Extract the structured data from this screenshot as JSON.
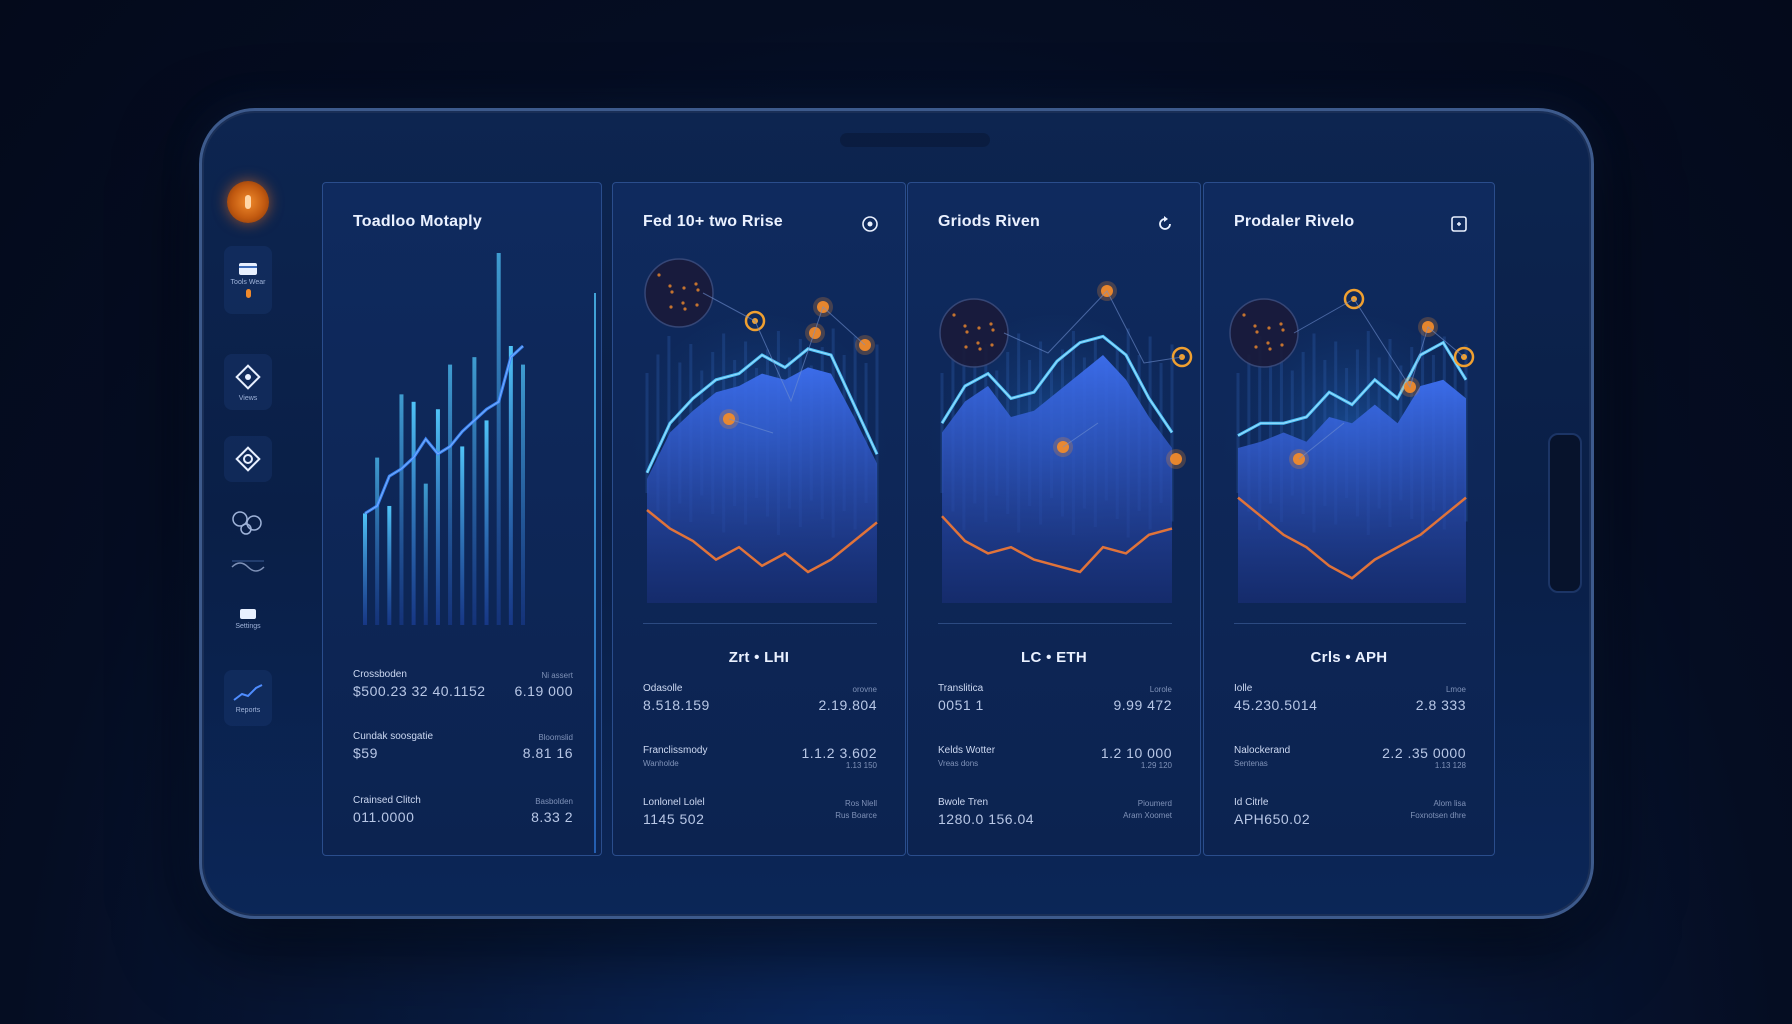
{
  "colors": {
    "background": "#050d22",
    "panel": "#0f2a5e",
    "accent_blue": "#3d8bff",
    "accent_cyan": "#4fc3f7",
    "accent_orange": "#f08a2c"
  },
  "sidebar": {
    "logo_icon": "coin-icon",
    "items": [
      {
        "label": "Tools Wear",
        "icon": "wallet-icon"
      },
      {
        "label": "Views",
        "icon": "diamond-icon"
      },
      {
        "label": "",
        "icon": "target-icon"
      },
      {
        "label": "",
        "icon": "network-icon"
      },
      {
        "label": "",
        "icon": "link-icon"
      },
      {
        "label": "Settings",
        "icon": "card-icon"
      },
      {
        "label": "Reports",
        "icon": "trend-icon"
      }
    ]
  },
  "panels": [
    {
      "title": "Toadloo Motaply",
      "icon": "",
      "pair": "",
      "stats": [
        {
          "label": "Crossboden",
          "value": "$500.23 32 40.1152",
          "rlabel": "Ni assert",
          "rvalue": "6.19 000"
        },
        {
          "label": "Cundak soosgatie",
          "value": "$59",
          "rlabel": "Bloomslid",
          "rvalue": "8.81 16"
        },
        {
          "label": "Crainsed Clitch",
          "value": "011.0000",
          "rlabel": "Basbolden",
          "rvalue": "8.33 2"
        }
      ]
    },
    {
      "title": "Fed 10+ two Rrise",
      "icon": "coin-icon",
      "pair": "Zrt • LHI",
      "stats": [
        {
          "label": "Odasolle",
          "value": "8.518.159",
          "rlabel": "orovne",
          "rvalue": "2.19.804",
          "sub": "",
          "rsub": ""
        },
        {
          "label": "Franclissmody",
          "value": "",
          "rlabel": "",
          "rvalue": "1.1.2 3.602",
          "sub": "Wanholde",
          "rsub": "1.13 150"
        },
        {
          "label": "Lonlonel Lolel",
          "value": "1145 502",
          "rlabel": "Ros Nlell",
          "rvalue": "",
          "sub": "",
          "rsub": "Rus Boarce"
        }
      ]
    },
    {
      "title": "Griods Riven",
      "icon": "refresh-icon",
      "pair": "LC • ETH",
      "stats": [
        {
          "label": "Translitica",
          "value": "0051 1",
          "rlabel": "Lorole",
          "rvalue": "9.99 472",
          "sub": "",
          "rsub": ""
        },
        {
          "label": "Kelds Wotter",
          "value": "",
          "rlabel": "",
          "rvalue": "1.2 10 000",
          "sub": "Vreas dons",
          "rsub": "1.29 120"
        },
        {
          "label": "Bwole Tren",
          "value": "1280.0 156.04",
          "rlabel": "Pioumerd",
          "rvalue": "",
          "sub": "",
          "rsub": "Aram Xoomet"
        }
      ]
    },
    {
      "title": "Prodaler Rivelo",
      "icon": "expand-icon",
      "pair": "Crls • APH",
      "stats": [
        {
          "label": "Iolle",
          "value": "45.230.5014",
          "rlabel": "Lmoe",
          "rvalue": "2.8 333",
          "sub": "",
          "rsub": ""
        },
        {
          "label": "Nalockerand",
          "value": "",
          "rlabel": "",
          "rvalue": "2.2 .35 0000",
          "sub": "Sentenas",
          "rsub": "1.13 128"
        },
        {
          "label": "Id Citrle",
          "value": "APH650.02",
          "rlabel": "Alom lisa",
          "rvalue": "",
          "sub": "",
          "rsub": "Foxnotsen dhre"
        }
      ]
    }
  ],
  "chart_data": [
    {
      "type": "bar",
      "title": "Toadloo Motaply",
      "values": [
        30,
        45,
        32,
        62,
        60,
        38,
        58,
        70,
        48,
        72,
        55,
        100,
        75,
        70
      ],
      "series": [
        {
          "name": "",
          "values": [
            30,
            32,
            40,
            42,
            45,
            50,
            46,
            48,
            52,
            55,
            58,
            60,
            72,
            75
          ]
        }
      ]
    },
    {
      "type": "area",
      "title": "Fed 10+ two Rrise",
      "series": [
        {
          "name": "",
          "values": [
            40,
            55,
            62,
            68,
            70,
            74,
            72,
            76,
            74,
            60,
            45
          ]
        },
        {
          "name": "",
          "values": [
            42,
            58,
            66,
            72,
            74,
            80,
            76,
            82,
            80,
            64,
            48
          ]
        },
        {
          "name": "",
          "values": [
            30,
            24,
            20,
            14,
            18,
            12,
            16,
            10,
            14,
            20,
            26
          ]
        }
      ]
    },
    {
      "type": "area",
      "title": "Griods Riven",
      "series": [
        {
          "name": "",
          "values": [
            55,
            65,
            70,
            60,
            62,
            68,
            74,
            80,
            72,
            60,
            50
          ]
        },
        {
          "name": "",
          "values": [
            58,
            70,
            74,
            66,
            68,
            78,
            84,
            86,
            80,
            66,
            55
          ]
        },
        {
          "name": "",
          "values": [
            28,
            20,
            16,
            18,
            14,
            12,
            10,
            18,
            16,
            22,
            24
          ]
        }
      ]
    },
    {
      "type": "area",
      "title": "Prodaler Rivelo",
      "series": [
        {
          "name": "",
          "values": [
            50,
            52,
            55,
            52,
            60,
            58,
            64,
            58,
            70,
            72,
            66
          ]
        },
        {
          "name": "",
          "values": [
            54,
            58,
            58,
            60,
            68,
            64,
            72,
            66,
            80,
            84,
            72
          ]
        },
        {
          "name": "",
          "values": [
            34,
            28,
            22,
            18,
            12,
            8,
            14,
            18,
            22,
            28,
            34
          ]
        }
      ]
    }
  ]
}
